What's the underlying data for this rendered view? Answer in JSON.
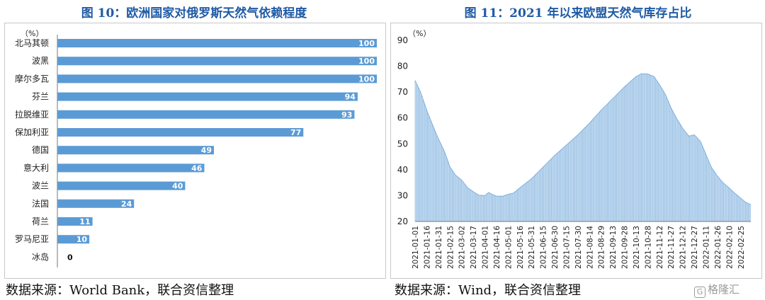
{
  "titles": {
    "left": "图 10：欧洲国家对俄罗斯天然气依赖程度",
    "right": "图 11：2021 年以来欧盟天然气库存占比"
  },
  "sources": {
    "left": "数据来源：World Bank，联合资信整理",
    "right": "数据来源：Wind，联合资信整理"
  },
  "watermark": {
    "icon": "G",
    "text": "格隆汇"
  },
  "colors": {
    "bar": "#5b9bd5",
    "fill": "#9cc3e6",
    "title": "#1f5aa6"
  },
  "chart_data": [
    {
      "type": "bar",
      "orientation": "horizontal",
      "unit_label": "（%）",
      "categories": [
        "北马其顿",
        "波黑",
        "摩尔多瓦",
        "芬兰",
        "拉脱维亚",
        "保加利亚",
        "德国",
        "意大利",
        "波兰",
        "法国",
        "荷兰",
        "罗马尼亚",
        "冰岛"
      ],
      "values": [
        100,
        100,
        100,
        94,
        93,
        77,
        49,
        46,
        40,
        24,
        11,
        10,
        0
      ],
      "xlim": [
        0,
        100
      ],
      "grid": false,
      "legend": "none"
    },
    {
      "type": "area",
      "unit_label": "（%）",
      "ylim": [
        20,
        90
      ],
      "yticks": [
        20,
        30,
        40,
        50,
        60,
        70,
        80,
        90
      ],
      "xticks": [
        "2021-01-01",
        "2021-01-16",
        "2021-01-31",
        "2021-02-15",
        "2021-03-02",
        "2021-03-17",
        "2021-04-01",
        "2021-04-16",
        "2021-05-01",
        "2021-05-16",
        "2021-05-31",
        "2021-06-15",
        "2021-06-30",
        "2021-07-15",
        "2021-07-30",
        "2021-08-14",
        "2021-08-29",
        "2021-09-13",
        "2021-09-28",
        "2021-10-13",
        "2021-10-28",
        "2021-11-12",
        "2021-11-27",
        "2021-12-12",
        "2021-12-27",
        "2022-01-11",
        "2022-01-26",
        "2022-02-10",
        "2022-02-25"
      ],
      "x_range": [
        "2021-01-01",
        "2022-03-10"
      ],
      "series": [
        {
          "points": [
            [
              "2021-01-01",
              74.5
            ],
            [
              "2021-01-08",
              70
            ],
            [
              "2021-01-16",
              63
            ],
            [
              "2021-01-24",
              57
            ],
            [
              "2021-01-31",
              52
            ],
            [
              "2021-02-08",
              47
            ],
            [
              "2021-02-15",
              41
            ],
            [
              "2021-02-22",
              38
            ],
            [
              "2021-03-02",
              36
            ],
            [
              "2021-03-10",
              33
            ],
            [
              "2021-03-17",
              31.5
            ],
            [
              "2021-03-24",
              30.2
            ],
            [
              "2021-04-01",
              30
            ],
            [
              "2021-04-06",
              31.2
            ],
            [
              "2021-04-10",
              30.5
            ],
            [
              "2021-04-16",
              29.8
            ],
            [
              "2021-04-24",
              29.8
            ],
            [
              "2021-05-01",
              30.5
            ],
            [
              "2021-05-08",
              31
            ],
            [
              "2021-05-16",
              33
            ],
            [
              "2021-05-31",
              36.5
            ],
            [
              "2021-06-15",
              41
            ],
            [
              "2021-06-30",
              45.5
            ],
            [
              "2021-07-15",
              49.5
            ],
            [
              "2021-07-30",
              53.5
            ],
            [
              "2021-08-14",
              58
            ],
            [
              "2021-08-29",
              63
            ],
            [
              "2021-09-13",
              67.5
            ],
            [
              "2021-09-28",
              72
            ],
            [
              "2021-10-13",
              76
            ],
            [
              "2021-10-20",
              77.1
            ],
            [
              "2021-10-28",
              77
            ],
            [
              "2021-11-05",
              76
            ],
            [
              "2021-11-12",
              73
            ],
            [
              "2021-11-20",
              69
            ],
            [
              "2021-11-27",
              64
            ],
            [
              "2021-12-04",
              60
            ],
            [
              "2021-12-12",
              56
            ],
            [
              "2021-12-20",
              53
            ],
            [
              "2021-12-27",
              53.5
            ],
            [
              "2022-01-04",
              51
            ],
            [
              "2022-01-11",
              46
            ],
            [
              "2022-01-18",
              41
            ],
            [
              "2022-01-26",
              37.5
            ],
            [
              "2022-02-02",
              35
            ],
            [
              "2022-02-10",
              33
            ],
            [
              "2022-02-17",
              31
            ],
            [
              "2022-02-25",
              29
            ],
            [
              "2022-03-03",
              27.5
            ],
            [
              "2022-03-10",
              26.5
            ]
          ]
        }
      ],
      "grid": false,
      "legend": "none"
    }
  ]
}
